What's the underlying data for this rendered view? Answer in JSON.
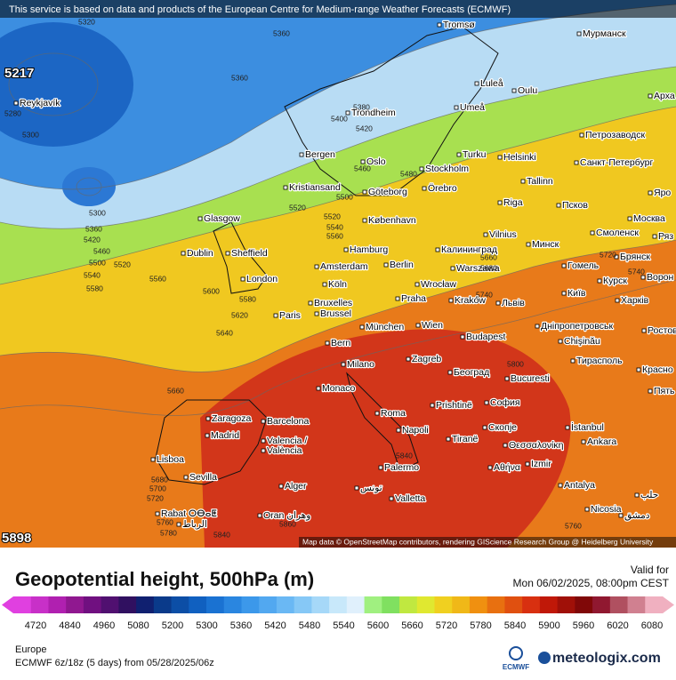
{
  "banner": "This service is based on data and products of the European Centre for Medium-range Weather Forecasts (ECMWF)",
  "attribution": "Map data © OpenStreetMap contributors, rendering GIScience Research Group @ Heidelberg University",
  "map": {
    "cities": [
      "Tromsø",
      "Мурманск",
      "Luleå",
      "Oulu",
      "Reykjavík",
      "Арха",
      "Umeå",
      "Trondheim",
      "Петрозаводск",
      "Turku",
      "Helsinki",
      "Bergen",
      "Oslo",
      "Санкт-Петербург",
      "Stockholm",
      "Tallinn",
      "Kristiansand",
      "Göteborg",
      "Örebro",
      "Яро",
      "Псков",
      "Riga",
      "Glasgow",
      "København",
      "Москва",
      "Vilnius",
      "Минск",
      "Смоленск",
      "Ряз",
      "Dublin",
      "Sheffield",
      "Hamburg",
      "Калининград",
      "Брянск",
      "Amsterdam",
      "Berlin",
      "Warszawa",
      "Гомель",
      "London",
      "Köln",
      "Wrocław",
      "Курск",
      "Ворон",
      "Bruxelles",
      "Brussel",
      "Praha",
      "Kraków",
      "Львів",
      "Київ",
      "Харків",
      "Paris",
      "München",
      "Wien",
      "Дніпропетровськ",
      "Ростов",
      "Budapest",
      "Chişinău",
      "Bern",
      "Тирасполь",
      "Milano",
      "Zagreb",
      "Београд",
      "Красно",
      "Bucuresti",
      "Monaco",
      "Пять",
      "София",
      "Prishtinë",
      "Roma",
      "Zaragoza",
      "Barcelona",
      "Скопје",
      "İstanbul",
      "Madrid",
      "Napoli",
      "Tiranë",
      "Ankara",
      "Valencia /",
      "València",
      "Θεσσαλονίκη",
      "Lisboa",
      "Palermo",
      "Izmir",
      "Αθήνα",
      "Sevilla",
      "Antalya",
      "Alger",
      "تونس",
      "حلب",
      "Valletta",
      "Nicosia",
      "Rabat ⵔⴱⴰⵟ",
      "Oran وهران",
      "دمشق",
      "الرباط"
    ],
    "contour_labels": [
      5320,
      5360,
      5360,
      5280,
      5300,
      5400,
      5380,
      5420,
      5460,
      5480,
      5500,
      5520,
      5300,
      5360,
      5420,
      5460,
      5500,
      5520,
      5540,
      5580,
      5560,
      5520,
      5540,
      5560,
      5600,
      5580,
      5620,
      5640,
      5660,
      5680,
      5700,
      5720,
      5760,
      5780,
      5800,
      5840,
      5840,
      5860,
      5760,
      5720,
      5740,
      5740,
      5660,
      5680
    ],
    "extremes": [
      5217,
      5898
    ]
  },
  "legend": {
    "title": "Geopotential height, 500hPa (m)",
    "valid_label": "Valid for",
    "valid_time": "Mon 06/02/2025, 08:00pm CEST",
    "ticks": [
      4720,
      4840,
      4960,
      5080,
      5200,
      5300,
      5360,
      5420,
      5480,
      5540,
      5600,
      5660,
      5720,
      5780,
      5840,
      5900,
      5960,
      6020,
      6080
    ],
    "colors": [
      "#e040e0",
      "#c830c8",
      "#b020b0",
      "#901890",
      "#701080",
      "#501070",
      "#301060",
      "#102070",
      "#0a3a8a",
      "#0c4ea6",
      "#1060c0",
      "#1a72d2",
      "#2a86e0",
      "#3c98ea",
      "#52a8f0",
      "#6ab8f4",
      "#86c8f6",
      "#a6d8f8",
      "#c8e8fa",
      "#e0f0fc",
      "#a0f080",
      "#80e060",
      "#c0e840",
      "#e0e830",
      "#f0d020",
      "#f0b818",
      "#f09010",
      "#e87010",
      "#e05010",
      "#d83010",
      "#c01808",
      "#a01008",
      "#800808",
      "#901830",
      "#b05060",
      "#d08090",
      "#f0b0c0"
    ]
  },
  "footer": {
    "region": "Europe",
    "run": "ECMWF 6z/18z (5 days) from 05/28/2025/06z",
    "logos": [
      "ECMWF",
      "meteologix.com"
    ]
  }
}
